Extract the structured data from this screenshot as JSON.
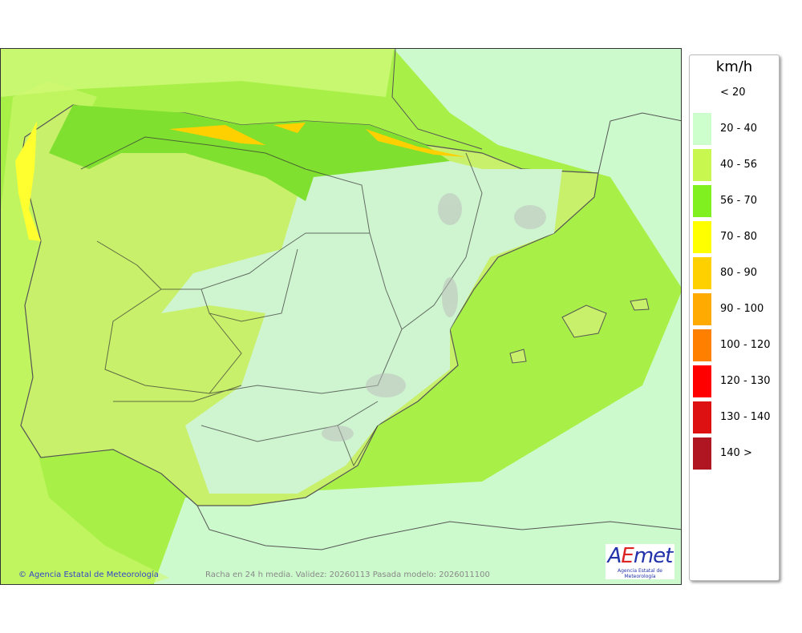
{
  "map": {
    "credit": "© Agencia Estatal de Meteorología",
    "caption": "Racha en 24 h media. Validez: 20260113 Pasada modelo: 2026011100",
    "logo": {
      "text": "AEmet",
      "subtitle": "Agencia Estatal de Meteorología"
    }
  },
  "legend": {
    "unit": "km/h",
    "items": [
      {
        "label": "< 20",
        "color": "#ffffff"
      },
      {
        "label": "20 - 40",
        "color": "#ccffcc"
      },
      {
        "label": "40 - 56",
        "color": "#c8f850"
      },
      {
        "label": "56 - 70",
        "color": "#80f020"
      },
      {
        "label": "70 - 80",
        "color": "#ffff00"
      },
      {
        "label": "80 - 90",
        "color": "#ffd000"
      },
      {
        "label": "90 - 100",
        "color": "#ffaa00"
      },
      {
        "label": "100 - 120",
        "color": "#ff8000"
      },
      {
        "label": "120 - 130",
        "color": "#ff0000"
      },
      {
        "label": "130 - 140",
        "color": "#dd1111"
      },
      {
        "label": "140 >",
        "color": "#b01522"
      }
    ]
  }
}
